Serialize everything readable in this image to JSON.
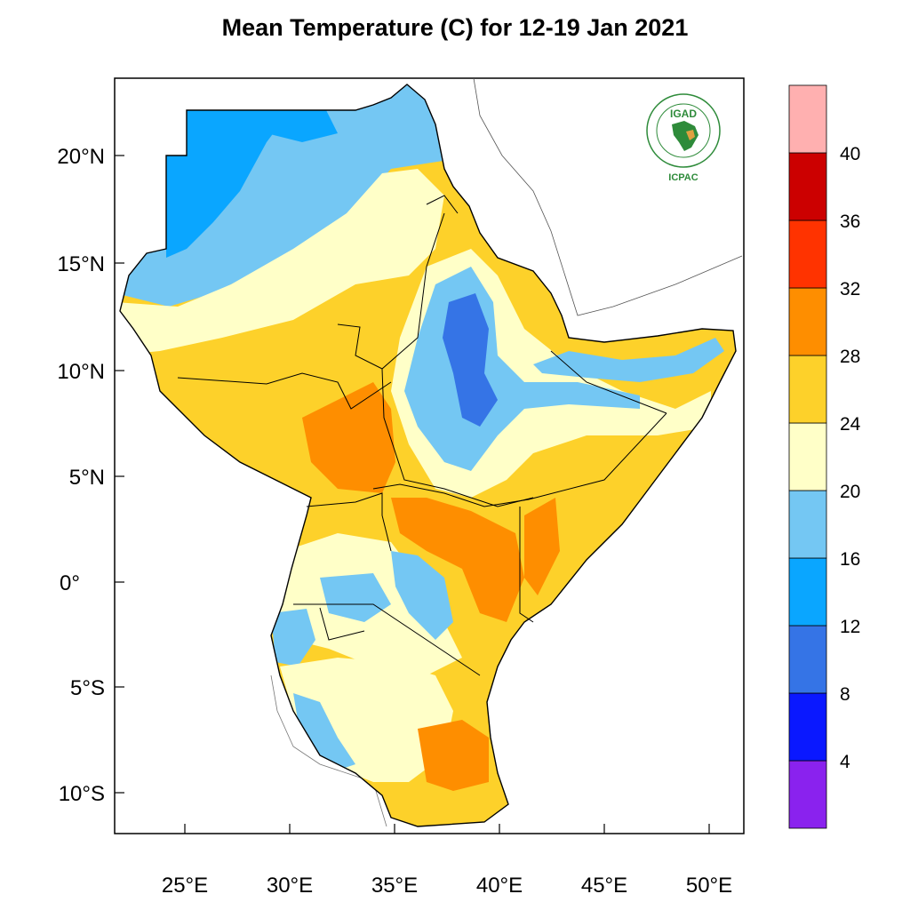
{
  "title": "Mean Temperature (C) for 12-19 Jan 2021",
  "map": {
    "lat_ticks": [
      "20°N",
      "15°N",
      "10°N",
      "5°N",
      "0°",
      "5°S",
      "10°S"
    ],
    "lon_ticks": [
      "25°E",
      "30°E",
      "35°E",
      "40°E",
      "45°E",
      "50°E"
    ],
    "lon_range": [
      21.8,
      51.7
    ],
    "lat_range": [
      -11.7,
      23.6
    ]
  },
  "colorbar": {
    "levels": [
      "4",
      "8",
      "12",
      "16",
      "20",
      "24",
      "28",
      "32",
      "36",
      "40"
    ],
    "colors": [
      "#8a22ee",
      "#1f1ff5",
      "#0a18ff",
      "#3574e6",
      "#0aa6ff",
      "#74c7f3",
      "#ffffc8",
      "#fdd12a",
      "#fe8e00",
      "#ff3300",
      "#cc0000",
      "#ffb0b0"
    ]
  },
  "logo": {
    "top_text": "IGAD",
    "bottom_text": "ICPAC"
  },
  "palette": {
    "cool": "#74c7f3",
    "mild": "#ffffc8",
    "warm": "#fdd12a",
    "hot": "#fe8e00",
    "cold": "#0aa6ff",
    "colder": "#3574e6"
  }
}
